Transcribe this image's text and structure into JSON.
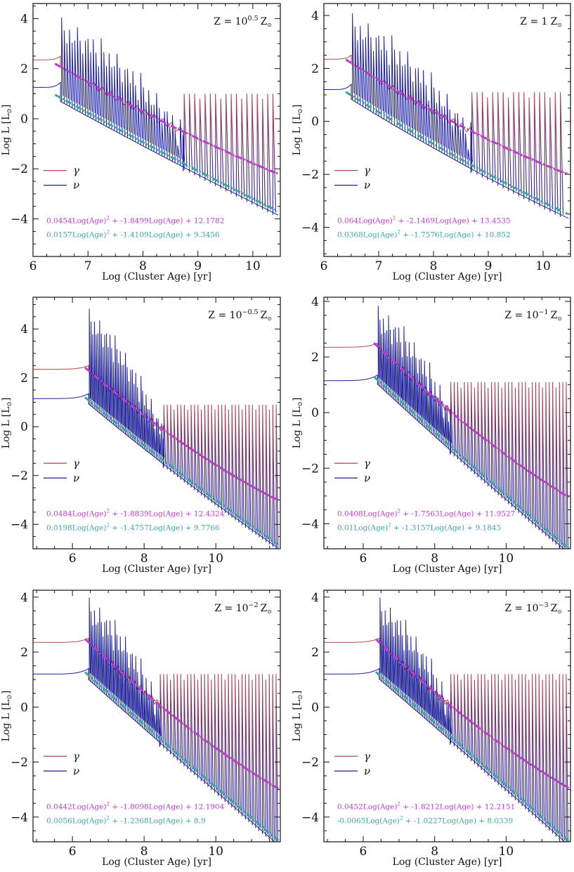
{
  "colors": {
    "gamma": "#b5474c",
    "nu": "#1c1f96",
    "gamma_fit": "#c338d0",
    "nu_fit": "#3aa6a3",
    "axes": "#111111"
  },
  "chart_data": [
    {
      "type": "line",
      "z_base": "Z = 10",
      "z_exp": "0.5",
      "z_unit": "Z",
      "xlabel": "Log (Cluster Age) [yr]",
      "ylabel": "Log L [L",
      "ylabel_sub": "⊙",
      "ylabel_end": "]",
      "xlim": [
        6,
        10.5
      ],
      "ylim": [
        -5.5,
        4.6
      ],
      "xticks": [
        6,
        7,
        8,
        9,
        10
      ],
      "yticks": [
        -4,
        -2,
        0,
        2,
        4
      ],
      "legend": {
        "position": "middle-left",
        "entries": [
          "γ",
          "ν"
        ]
      },
      "series": [
        {
          "name": "γ",
          "key": "gamma",
          "initial_level": 2.35,
          "start": 6.5,
          "spike_peak_max": 2.1,
          "second_branch_start": 8.75,
          "second_branch_top": 1.0
        },
        {
          "name": "ν",
          "key": "nu",
          "initial_level": 1.25,
          "start": 6.5,
          "spike_peak_max": 4.05,
          "second_branch_start": 8.75
        }
      ],
      "fits": {
        "gamma": {
          "a": 0.0454,
          "b": -1.8499,
          "c": 12.1782,
          "text": [
            "0.0454Log(Age)",
            "2",
            " + -1.8499Log(Age) + 12.1782"
          ]
        },
        "nu": {
          "a": 0.0157,
          "b": -1.4109,
          "c": 9.3456,
          "text": [
            "0.0157Log(Age)",
            "2",
            " + -1.4109Log(Age) + 9.3456"
          ]
        }
      }
    },
    {
      "type": "line",
      "z_base": "Z = 1",
      "z_exp": "",
      "z_unit": "Z",
      "xlabel": "Log (Cluster Age) [yr]",
      "ylabel": "Log L [L",
      "ylabel_sub": "⊙",
      "ylabel_end": "]",
      "xlim": [
        6,
        10.5
      ],
      "ylim": [
        -5.1,
        4.45
      ],
      "xticks": [
        6,
        7,
        8,
        9,
        10
      ],
      "yticks": [
        -4,
        -2,
        0,
        2,
        4
      ],
      "legend": {
        "position": "middle-left",
        "entries": [
          "γ",
          "ν"
        ]
      },
      "series": [
        {
          "name": "γ",
          "key": "gamma",
          "initial_level": 2.35,
          "start": 6.5,
          "spike_peak_max": 2.2,
          "second_branch_start": 8.7,
          "second_branch_top": 1.1
        },
        {
          "name": "ν",
          "key": "nu",
          "initial_level": 1.2,
          "start": 6.5,
          "spike_peak_max": 4.1,
          "second_branch_start": 8.7
        }
      ],
      "fits": {
        "gamma": {
          "a": 0.064,
          "b": -2.1469,
          "c": 13.4535,
          "text": [
            "0.064Log(Age)",
            "2",
            " + -2.1469Log(Age) + 13.4535"
          ]
        },
        "nu": {
          "a": 0.0368,
          "b": -1.7576,
          "c": 10.852,
          "text": [
            "0.0368Log(Age)",
            "2",
            " + -1.7576Log(Age) + 10.852"
          ]
        }
      }
    },
    {
      "type": "line",
      "z_base": "Z = 10",
      "z_exp": "−0.5",
      "z_unit": "Z",
      "xlabel": "Log (Cluster Age) [yr]",
      "ylabel": "Log L [L",
      "ylabel_sub": "⊙",
      "ylabel_end": "]",
      "xlim": [
        4.9,
        11.8
      ],
      "ylim": [
        -5.0,
        5.3
      ],
      "xticks": [
        6,
        8,
        10
      ],
      "yticks": [
        -4,
        -2,
        0,
        2,
        4
      ],
      "legend": {
        "position": "middle-left",
        "entries": [
          "γ",
          "ν"
        ]
      },
      "series": [
        {
          "name": "γ",
          "key": "gamma",
          "initial_level": 2.35,
          "start": 6.45,
          "spike_peak_max": 2.3,
          "second_branch_start": 8.55,
          "second_branch_top": 0.9
        },
        {
          "name": "ν",
          "key": "nu",
          "initial_level": 1.15,
          "start": 6.45,
          "spike_peak_max": 4.85,
          "second_branch_start": 8.55
        }
      ],
      "fits": {
        "gamma": {
          "a": 0.0484,
          "b": -1.8839,
          "c": 12.4324,
          "text": [
            "0.0484Log(Age)",
            "2",
            " + -1.8839Log(Age) + 12.4324"
          ]
        },
        "nu": {
          "a": 0.0198,
          "b": -1.4757,
          "c": 9.7766,
          "text": [
            "0.0198Log(Age)",
            "2",
            " + -1.4757Log(Age) + 9.7766"
          ]
        }
      }
    },
    {
      "type": "line",
      "z_base": "Z = 10",
      "z_exp": "−1",
      "z_unit": "Z",
      "xlabel": "Log (Cluster Age) [yr]",
      "ylabel": "Log L [L",
      "ylabel_sub": "⊙",
      "ylabel_end": "]",
      "xlim": [
        4.9,
        11.8
      ],
      "ylim": [
        -4.9,
        4.15
      ],
      "xticks": [
        6,
        8,
        10
      ],
      "yticks": [
        -4,
        -2,
        0,
        2,
        4
      ],
      "legend": {
        "position": "middle-left",
        "entries": [
          "γ",
          "ν"
        ]
      },
      "series": [
        {
          "name": "γ",
          "key": "gamma",
          "initial_level": 2.35,
          "start": 6.4,
          "spike_peak_max": 2.4,
          "second_branch_start": 8.45,
          "second_branch_top": 1.1
        },
        {
          "name": "ν",
          "key": "nu",
          "initial_level": 1.15,
          "start": 6.4,
          "spike_peak_max": 3.85,
          "second_branch_start": 8.45
        }
      ],
      "fits": {
        "gamma": {
          "a": 0.0408,
          "b": -1.7563,
          "c": 11.9527,
          "text": [
            "0.0408Log(Age)",
            "2",
            " + -1.7563Log(Age) + 11.9527"
          ]
        },
        "nu": {
          "a": 0.01,
          "b": -1.3157,
          "c": 9.1845,
          "text": [
            "0.01Log(Age)",
            "2",
            " + -1.3157Log(Age) + 9.1845"
          ]
        }
      }
    },
    {
      "type": "line",
      "z_base": "Z = 10",
      "z_exp": "−2",
      "z_unit": "Z",
      "xlabel": "Log (Cluster Age) [yr]",
      "ylabel": "Log L [L",
      "ylabel_sub": "⊙",
      "ylabel_end": "]",
      "xlim": [
        4.9,
        11.8
      ],
      "ylim": [
        -4.9,
        4.25
      ],
      "xticks": [
        6,
        8,
        10
      ],
      "yticks": [
        -4,
        -2,
        0,
        2,
        4
      ],
      "legend": {
        "position": "middle-left",
        "entries": [
          "γ",
          "ν"
        ]
      },
      "series": [
        {
          "name": "γ",
          "key": "gamma",
          "initial_level": 2.35,
          "start": 6.45,
          "spike_peak_max": 2.5,
          "second_branch_start": 8.45,
          "second_branch_top": 1.2
        },
        {
          "name": "ν",
          "key": "nu",
          "initial_level": 1.2,
          "start": 6.45,
          "spike_peak_max": 4.0,
          "second_branch_start": 8.45
        }
      ],
      "fits": {
        "gamma": {
          "a": 0.0442,
          "b": -1.8098,
          "c": 12.1904,
          "text": [
            "0.0442Log(Age)",
            "2",
            " + -1.8098Log(Age) + 12.1904"
          ]
        },
        "nu": {
          "a": 0.0056,
          "b": -1.2368,
          "c": 8.9,
          "text": [
            "0.0056Log(Age)",
            "2",
            " + -1.2368Log(Age) + 8.9"
          ]
        }
      }
    },
    {
      "type": "line",
      "z_base": "Z = 10",
      "z_exp": "−3",
      "z_unit": "Z",
      "xlabel": "Log (Cluster Age) [yr]",
      "ylabel": "Log L [L",
      "ylabel_sub": "⊙",
      "ylabel_end": "]",
      "xlim": [
        4.9,
        11.8
      ],
      "ylim": [
        -4.9,
        4.25
      ],
      "xticks": [
        6,
        8,
        10
      ],
      "yticks": [
        -4,
        -2,
        0,
        2,
        4
      ],
      "legend": {
        "position": "middle-left",
        "entries": [
          "γ",
          "ν"
        ]
      },
      "series": [
        {
          "name": "γ",
          "key": "gamma",
          "initial_level": 2.35,
          "start": 6.45,
          "spike_peak_max": 2.4,
          "second_branch_start": 8.45,
          "second_branch_top": 1.2
        },
        {
          "name": "ν",
          "key": "nu",
          "initial_level": 1.2,
          "start": 6.45,
          "spike_peak_max": 4.0,
          "second_branch_start": 8.45
        }
      ],
      "fits": {
        "gamma": {
          "a": 0.0452,
          "b": -1.8212,
          "c": 12.2151,
          "text": [
            "0.0452Log(Age)",
            "2",
            " + -1.8212Log(Age) + 12.2151"
          ]
        },
        "nu": {
          "a": -0.0065,
          "b": -1.0227,
          "c": 8.0339,
          "text": [
            "-0.0065Log(Age)",
            "2",
            " + -1.0227Log(Age) + 8.0339"
          ]
        }
      }
    }
  ]
}
